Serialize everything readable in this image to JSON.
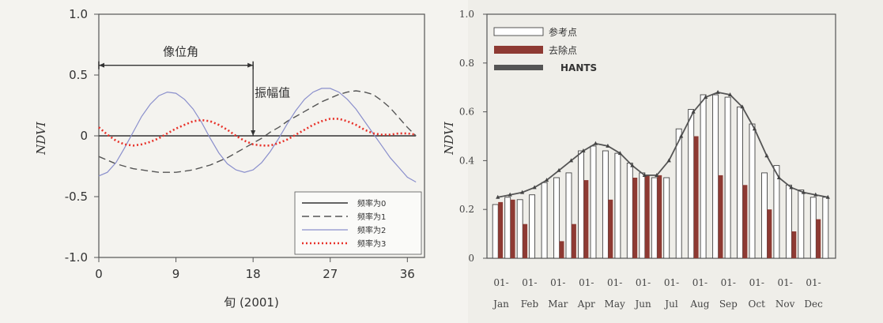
{
  "chart_data": [
    {
      "type": "line",
      "xlabel": "旬 (2001)",
      "ylabel": "NDVI",
      "xlim": [
        0,
        38
      ],
      "ylim": [
        -1.0,
        1.0
      ],
      "xticks": [
        "0",
        "9",
        "18",
        "27",
        "36"
      ],
      "yticks": [
        "1.0",
        "0.5",
        "0",
        "-0.5",
        "-1.0"
      ],
      "x": [
        0,
        1,
        2,
        3,
        4,
        5,
        6,
        7,
        8,
        9,
        10,
        11,
        12,
        13,
        14,
        15,
        16,
        17,
        18,
        19,
        20,
        21,
        22,
        23,
        24,
        25,
        26,
        27,
        28,
        29,
        30,
        31,
        32,
        33,
        34,
        35,
        36,
        37
      ],
      "series": [
        {
          "name": "频率为0",
          "style": "solid",
          "color": "#333333",
          "values": [
            0,
            0,
            0,
            0,
            0,
            0,
            0,
            0,
            0,
            0,
            0,
            0,
            0,
            0,
            0,
            0,
            0,
            0,
            0,
            0,
            0,
            0,
            0,
            0,
            0,
            0,
            0,
            0,
            0,
            0,
            0,
            0,
            0,
            0,
            0,
            0,
            0,
            0
          ]
        },
        {
          "name": "频率为1",
          "style": "dashed",
          "color": "#555555",
          "values": [
            -0.17,
            -0.2,
            -0.23,
            -0.25,
            -0.27,
            -0.28,
            -0.29,
            -0.3,
            -0.3,
            -0.3,
            -0.29,
            -0.28,
            -0.26,
            -0.24,
            -0.21,
            -0.18,
            -0.14,
            -0.1,
            -0.06,
            -0.02,
            0.03,
            0.07,
            0.12,
            0.16,
            0.2,
            0.24,
            0.28,
            0.31,
            0.34,
            0.36,
            0.37,
            0.36,
            0.34,
            0.29,
            0.23,
            0.15,
            0.07,
            0.0
          ]
        },
        {
          "name": "频率为2",
          "style": "solid",
          "color": "#8a8fcc",
          "values": [
            -0.33,
            -0.3,
            -0.22,
            -0.1,
            0.03,
            0.16,
            0.26,
            0.33,
            0.36,
            0.35,
            0.3,
            0.22,
            0.11,
            -0.02,
            -0.14,
            -0.23,
            -0.28,
            -0.3,
            -0.28,
            -0.22,
            -0.13,
            -0.02,
            0.1,
            0.21,
            0.3,
            0.36,
            0.39,
            0.39,
            0.36,
            0.3,
            0.22,
            0.12,
            0.02,
            -0.08,
            -0.18,
            -0.26,
            -0.34,
            -0.38
          ]
        },
        {
          "name": "频率为3",
          "style": "dotted",
          "color": "#e8322a",
          "values": [
            0.07,
            0.01,
            -0.04,
            -0.07,
            -0.08,
            -0.07,
            -0.05,
            -0.02,
            0.02,
            0.06,
            0.09,
            0.12,
            0.13,
            0.12,
            0.09,
            0.05,
            0.0,
            -0.04,
            -0.07,
            -0.08,
            -0.08,
            -0.06,
            -0.03,
            0.01,
            0.05,
            0.09,
            0.12,
            0.14,
            0.14,
            0.12,
            0.09,
            0.05,
            0.02,
            0.01,
            0.01,
            0.02,
            0.02,
            0.01
          ]
        }
      ],
      "annotations": [
        {
          "text": "像位角",
          "from": 0,
          "to": 18,
          "y": 0.58
        },
        {
          "text": "振幅值",
          "x": 18,
          "from": 0,
          "to": 0.58
        }
      ]
    },
    {
      "type": "bar",
      "ylabel": "NDVI",
      "ylim": [
        0,
        1.0
      ],
      "yticks": [
        "1.0",
        "0.8",
        "0.6",
        "0.4",
        "0.2",
        "0"
      ],
      "month_ticks": [
        "01-",
        "01-",
        "01-",
        "01-",
        "01-",
        "01-",
        "01-",
        "01-",
        "01-",
        "01-",
        "01-",
        "01-"
      ],
      "months": [
        "Jan",
        "Feb",
        "Mar",
        "Apr",
        "May",
        "Jun",
        "Jul",
        "Aug",
        "Sep",
        "Oct",
        "Nov",
        "Dec"
      ],
      "series": [
        {
          "name": "参考点",
          "color": "#ffffff",
          "values": [
            0.22,
            0.25,
            0.24,
            0.26,
            0.31,
            0.33,
            0.35,
            0.44,
            0.46,
            0.44,
            0.43,
            0.39,
            0.35,
            0.33,
            0.33,
            0.53,
            0.61,
            0.67,
            0.67,
            0.66,
            0.62,
            0.55,
            0.35,
            0.38,
            0.3,
            0.28,
            0.25,
            0.25
          ]
        },
        {
          "name": "去除点",
          "color": "#8e3a33",
          "values": [
            0.23,
            0.24,
            0.14,
            0.0,
            0.0,
            0.07,
            0.14,
            0.32,
            0.0,
            0.24,
            0.0,
            0.33,
            0.34,
            0.34,
            0.0,
            0.0,
            0.5,
            0.0,
            0.34,
            0.0,
            0.3,
            0.0,
            0.2,
            0.0,
            0.11,
            0.0,
            0.16,
            0.0
          ]
        },
        {
          "name": "HANTS",
          "color": "#555555",
          "values": [
            0.25,
            0.26,
            0.27,
            0.29,
            0.32,
            0.36,
            0.4,
            0.44,
            0.47,
            0.46,
            0.43,
            0.38,
            0.34,
            0.34,
            0.4,
            0.5,
            0.6,
            0.66,
            0.68,
            0.67,
            0.62,
            0.53,
            0.42,
            0.33,
            0.29,
            0.27,
            0.26,
            0.25
          ]
        }
      ]
    }
  ]
}
